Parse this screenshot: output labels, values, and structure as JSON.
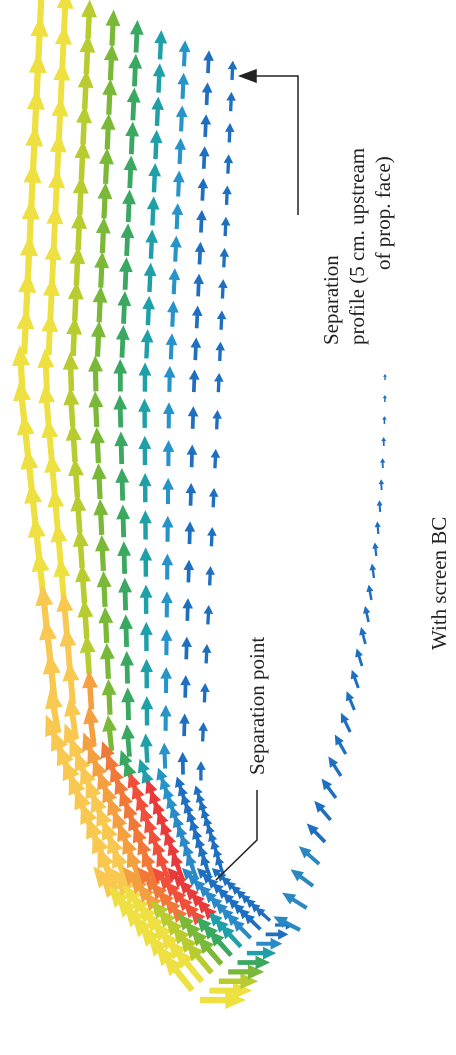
{
  "annotations": {
    "separation_profile": [
      "Separation",
      "profile (5 cm. upstream",
      "of prop. face)"
    ],
    "separation_point": "Separation point",
    "caption": "With screen BC"
  }
}
